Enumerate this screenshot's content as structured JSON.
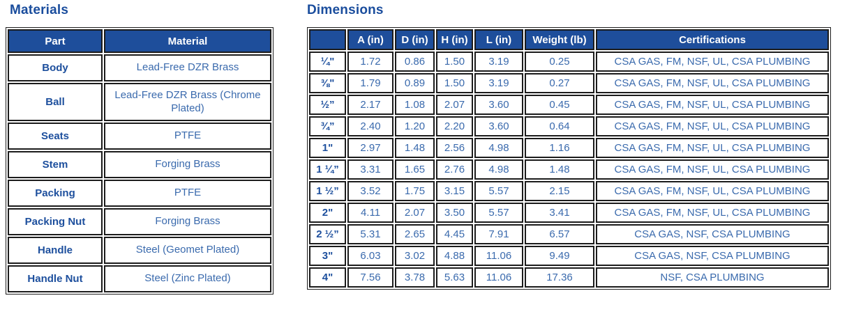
{
  "colors": {
    "header_bg": "#1e4e9b",
    "header_text": "#ffffff",
    "title_text": "#1a4d9d",
    "label_text": "#1d4f9d",
    "value_text": "#3a6aad",
    "grid_border": "#1c1c1c"
  },
  "materials": {
    "title": "Materials",
    "columns": [
      "Part",
      "Material"
    ],
    "rows": [
      {
        "part": "Body",
        "material": "Lead-Free DZR Brass"
      },
      {
        "part": "Ball",
        "material": "Lead-Free DZR Brass (Chrome Plated)"
      },
      {
        "part": "Seats",
        "material": "PTFE"
      },
      {
        "part": "Stem",
        "material": "Forging Brass"
      },
      {
        "part": "Packing",
        "material": "PTFE"
      },
      {
        "part": "Packing Nut",
        "material": "Forging Brass"
      },
      {
        "part": "Handle",
        "material": "Steel (Geomet Plated)"
      },
      {
        "part": "Handle Nut",
        "material": "Steel (Zinc Plated)"
      }
    ]
  },
  "dimensions": {
    "title": "Dimensions",
    "columns": [
      "",
      "A (in)",
      "D (in)",
      "H (in)",
      "L (in)",
      "Weight (lb)",
      "Certifications"
    ],
    "rows": [
      {
        "size": "¼\"",
        "a": "1.72",
        "d": "0.86",
        "h": "1.50",
        "l": "3.19",
        "weight": "0.25",
        "certs": "CSA GAS, FM, NSF, UL, CSA PLUMBING"
      },
      {
        "size": "⅜\"",
        "a": "1.79",
        "d": "0.89",
        "h": "1.50",
        "l": "3.19",
        "weight": "0.27",
        "certs": "CSA GAS, FM, NSF, UL, CSA PLUMBING"
      },
      {
        "size": "½”",
        "a": "2.17",
        "d": "1.08",
        "h": "2.07",
        "l": "3.60",
        "weight": "0.45",
        "certs": "CSA GAS, FM, NSF, UL, CSA PLUMBING"
      },
      {
        "size": "¾”",
        "a": "2.40",
        "d": "1.20",
        "h": "2.20",
        "l": "3.60",
        "weight": "0.64",
        "certs": "CSA GAS, FM, NSF, UL, CSA PLUMBING"
      },
      {
        "size": "1\"",
        "a": "2.97",
        "d": "1.48",
        "h": "2.56",
        "l": "4.98",
        "weight": "1.16",
        "certs": "CSA GAS, FM, NSF, UL, CSA PLUMBING"
      },
      {
        "size": "1 ¼”",
        "a": "3.31",
        "d": "1.65",
        "h": "2.76",
        "l": "4.98",
        "weight": "1.48",
        "certs": "CSA GAS, FM, NSF, UL, CSA PLUMBING"
      },
      {
        "size": "1 ½”",
        "a": "3.52",
        "d": "1.75",
        "h": "3.15",
        "l": "5.57",
        "weight": "2.15",
        "certs": "CSA GAS, FM, NSF, UL, CSA PLUMBING"
      },
      {
        "size": "2\"",
        "a": "4.11",
        "d": "2.07",
        "h": "3.50",
        "l": "5.57",
        "weight": "3.41",
        "certs": "CSA GAS, FM, NSF, UL, CSA PLUMBING"
      },
      {
        "size": "2 ½”",
        "a": "5.31",
        "d": "2.65",
        "h": "4.45",
        "l": "7.91",
        "weight": "6.57",
        "certs": "CSA GAS, NSF, CSA PLUMBING"
      },
      {
        "size": "3\"",
        "a": "6.03",
        "d": "3.02",
        "h": "4.88",
        "l": "11.06",
        "weight": "9.49",
        "certs": "CSA GAS, NSF, CSA PLUMBING"
      },
      {
        "size": "4\"",
        "a": "7.56",
        "d": "3.78",
        "h": "5.63",
        "l": "11.06",
        "weight": "17.36",
        "certs": "NSF, CSA PLUMBING"
      }
    ]
  }
}
